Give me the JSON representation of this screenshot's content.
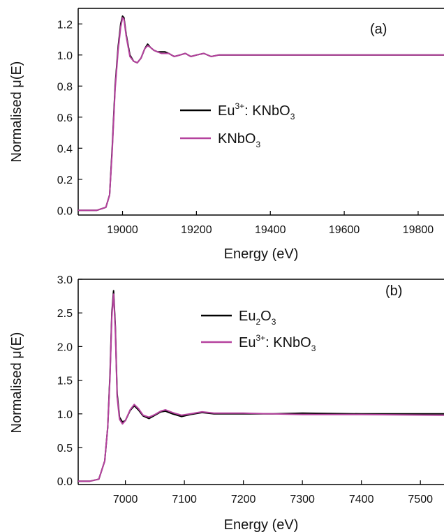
{
  "chart_data": [
    {
      "type": "line",
      "panel_label": "(a)",
      "xlabel": "Energy (eV)",
      "ylabel": "Normalised μ(E)",
      "xlim": [
        18880,
        19870
      ],
      "ylim": [
        -0.03,
        1.3
      ],
      "xticks": [
        19000,
        19200,
        19400,
        19600,
        19800
      ],
      "yticks": [
        0.0,
        0.2,
        0.4,
        0.6,
        0.8,
        1.0,
        1.2
      ],
      "ytick_labels": [
        "0.0",
        "0.2",
        "0.4",
        "0.6",
        "0.8",
        "1.0",
        "1.2"
      ],
      "grid": false,
      "legend_position": "center",
      "series": [
        {
          "name": "Eu3+: KNbO3",
          "legend": {
            "base": "Eu",
            "sup": "3+",
            "rest": ": KNbO",
            "sub": "3"
          },
          "color": "#000000",
          "x": [
            18880,
            18900,
            18930,
            18955,
            18965,
            18972,
            18980,
            18988,
            18995,
            19000,
            19004,
            19010,
            19020,
            19030,
            19040,
            19050,
            19060,
            19068,
            19075,
            19085,
            19095,
            19105,
            19115,
            19125,
            19140,
            19155,
            19170,
            19185,
            19200,
            19220,
            19240,
            19260,
            19300,
            19350,
            19400,
            19500,
            19600,
            19700,
            19870
          ],
          "y": [
            0.0,
            0.0,
            0.0,
            0.02,
            0.1,
            0.4,
            0.8,
            1.05,
            1.2,
            1.25,
            1.24,
            1.13,
            1.0,
            0.96,
            0.95,
            0.98,
            1.04,
            1.07,
            1.05,
            1.03,
            1.02,
            1.02,
            1.02,
            1.01,
            0.99,
            1.0,
            1.01,
            0.99,
            1.0,
            1.01,
            0.99,
            1.0,
            1.0,
            1.0,
            1.0,
            1.0,
            1.0,
            1.0,
            1.0
          ]
        },
        {
          "name": "KNbO3",
          "legend": {
            "base": "KNbO",
            "sup": "",
            "rest": "",
            "sub": "3"
          },
          "color": "#b5429e",
          "x": [
            18880,
            18900,
            18930,
            18955,
            18965,
            18972,
            18980,
            18988,
            18995,
            19000,
            19004,
            19010,
            19020,
            19030,
            19040,
            19050,
            19060,
            19068,
            19075,
            19085,
            19095,
            19105,
            19115,
            19125,
            19140,
            19155,
            19170,
            19185,
            19200,
            19220,
            19240,
            19260,
            19300,
            19350,
            19400,
            19500,
            19600,
            19700,
            19870
          ],
          "y": [
            0.0,
            0.0,
            0.0,
            0.02,
            0.1,
            0.38,
            0.78,
            1.03,
            1.18,
            1.24,
            1.23,
            1.12,
            0.99,
            0.96,
            0.95,
            0.98,
            1.04,
            1.06,
            1.05,
            1.03,
            1.02,
            1.01,
            1.01,
            1.01,
            0.99,
            1.0,
            1.01,
            0.99,
            1.0,
            1.01,
            0.99,
            1.0,
            1.0,
            1.0,
            1.0,
            1.0,
            1.0,
            1.0,
            1.0
          ]
        }
      ]
    },
    {
      "type": "line",
      "panel_label": "(b)",
      "xlabel": "Energy (eV)",
      "ylabel": "Normalised μ(E)",
      "xlim": [
        6920,
        7540
      ],
      "ylim": [
        -0.05,
        3.0
      ],
      "xticks": [
        7000,
        7100,
        7200,
        7300,
        7400,
        7500
      ],
      "yticks": [
        0.0,
        0.5,
        1.0,
        1.5,
        2.0,
        2.5,
        3.0
      ],
      "ytick_labels": [
        "0.0",
        "0.5",
        "1.0",
        "1.5",
        "2.0",
        "2.5",
        "3.0"
      ],
      "grid": false,
      "legend_position": "top-center",
      "series": [
        {
          "name": "Eu2O3",
          "legend": {
            "base": "Eu",
            "sup": "",
            "rest": "",
            "sub": "2",
            "base2": "O",
            "sub2": "3"
          },
          "color": "#000000",
          "x": [
            6920,
            6940,
            6955,
            6965,
            6970,
            6974,
            6977,
            6980,
            6983,
            6986,
            6990,
            6995,
            7000,
            7008,
            7015,
            7022,
            7030,
            7040,
            7050,
            7060,
            7068,
            7080,
            7095,
            7110,
            7130,
            7150,
            7200,
            7250,
            7300,
            7400,
            7540
          ],
          "y": [
            0.0,
            0.0,
            0.03,
            0.3,
            0.8,
            1.6,
            2.5,
            2.83,
            2.3,
            1.3,
            0.95,
            0.88,
            0.9,
            1.05,
            1.12,
            1.06,
            0.97,
            0.93,
            0.98,
            1.03,
            1.04,
            1.0,
            0.96,
            0.99,
            1.02,
            1.0,
            1.0,
            1.0,
            1.01,
            1.0,
            1.0
          ]
        },
        {
          "name": "Eu3+: KNbO3",
          "legend": {
            "base": "Eu",
            "sup": "3+",
            "rest": ": KNbO",
            "sub": "3"
          },
          "color": "#b5429e",
          "x": [
            6920,
            6940,
            6955,
            6965,
            6970,
            6974,
            6977,
            6980,
            6983,
            6986,
            6990,
            6995,
            7000,
            7008,
            7015,
            7022,
            7030,
            7040,
            7050,
            7060,
            7068,
            7080,
            7095,
            7110,
            7130,
            7150,
            7200,
            7250,
            7300,
            7400,
            7540
          ],
          "y": [
            0.0,
            0.0,
            0.03,
            0.3,
            0.8,
            1.55,
            2.45,
            2.78,
            2.25,
            1.25,
            0.92,
            0.85,
            0.9,
            1.06,
            1.14,
            1.08,
            0.98,
            0.95,
            0.99,
            1.04,
            1.06,
            1.02,
            0.98,
            1.0,
            1.03,
            1.01,
            1.01,
            1.0,
            0.99,
            0.99,
            0.98
          ]
        }
      ]
    }
  ]
}
